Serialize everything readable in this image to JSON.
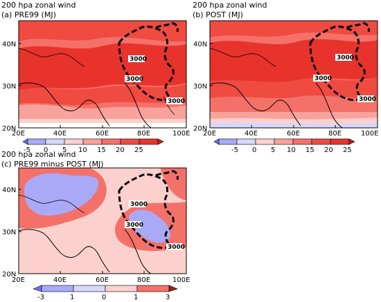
{
  "panels": [
    {
      "id": "a",
      "title_line1": "200 hpa zonal wind",
      "title_line2": "(a) PRE99 (MJ)",
      "lat_labels": [
        "40N",
        "30N",
        "20N"
      ],
      "lon_labels": [
        "20E",
        "40E",
        "60E",
        "80E",
        "100E"
      ],
      "contour_labels": [
        "3000",
        "3000",
        "3000"
      ],
      "colorbar_labels": [
        "-5",
        "0",
        "5",
        "10",
        "15",
        "20",
        "25"
      ]
    },
    {
      "id": "b",
      "title_line1": "200 hpa zonal wind",
      "title_line2": "(b) POST (MJ)",
      "lat_labels": [
        "40N",
        "30N",
        "20N"
      ],
      "lon_labels": [
        "20E",
        "40E",
        "60E",
        "80E",
        "100E"
      ],
      "contour_labels": [
        "3000",
        "3000",
        "3000"
      ],
      "colorbar_labels": [
        "-5",
        "0",
        "5",
        "10",
        "15",
        "20",
        "25"
      ]
    },
    {
      "id": "c",
      "title_line1": "200 hpa zonal wind",
      "title_line2": "(c) PRE99 minus POST (MJ)",
      "lat_labels": [
        "40N",
        "30N",
        "20N"
      ],
      "lon_labels": [
        "20E",
        "40E",
        "60E",
        "80E",
        "100E"
      ],
      "contour_labels": [
        "3000",
        "3000",
        "3000"
      ],
      "colorbar_labels": [
        "-3",
        "1",
        "0",
        "1",
        "3"
      ]
    }
  ],
  "colors": {
    "deep_red": "#e8332c",
    "red": "#ef4b41",
    "mid_red": "#f4716a",
    "light_red": "#f8a29b",
    "pale_red": "#fcd0cc",
    "white": "#ffffff",
    "pale_blue": "#d7d7fb",
    "light_blue": "#a9a9f7",
    "blue": "#7070f0",
    "brown": "#8b2c10"
  }
}
